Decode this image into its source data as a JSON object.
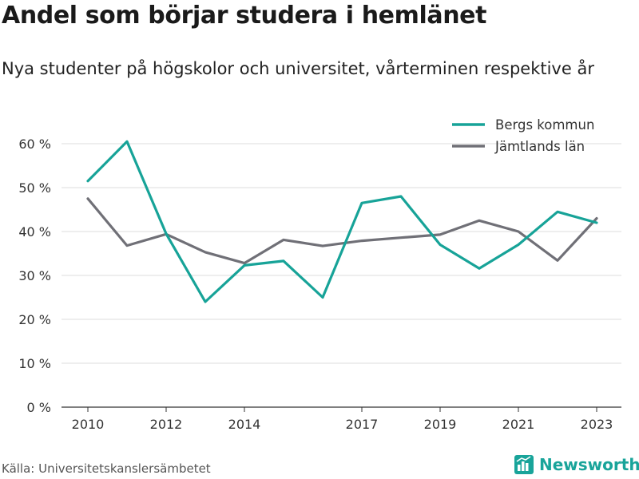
{
  "header": {
    "title": "Andel som börjar studera i hemlänet",
    "subtitle": "Nya studenter på högskolor och universitet, vårterminen respektive år"
  },
  "footer": {
    "source": "Källa: Universitetskanslersämbetet",
    "brand": "Newsworthy",
    "brand_icon": "newsworthy-logo-icon",
    "brand_color": "#19a49a"
  },
  "chart_data": {
    "type": "line",
    "title": "Andel som börjar studera i hemlänet",
    "subtitle": "Nya studenter på högskolor och universitet, vårterminen respektive år",
    "xlabel": "",
    "ylabel": "",
    "x": [
      2010,
      2011,
      2012,
      2013,
      2014,
      2015,
      2016,
      2017,
      2018,
      2019,
      2020,
      2021,
      2022,
      2023
    ],
    "x_ticks": [
      2010,
      2012,
      2014,
      2017,
      2019,
      2021,
      2023
    ],
    "xlim": [
      2010,
      2023
    ],
    "ylim": [
      0,
      60
    ],
    "y_ticks": [
      0,
      10,
      20,
      30,
      40,
      50,
      60
    ],
    "y_tick_labels": [
      "0 %",
      "10 %",
      "20 %",
      "30 %",
      "40 %",
      "50 %",
      "60 %"
    ],
    "grid": true,
    "legend_position": "top-right",
    "series": [
      {
        "name": "Bergs kommun",
        "color": "#17a398",
        "values": [
          51.5,
          60.5,
          39.5,
          24,
          32.3,
          33.3,
          25,
          46.5,
          48,
          37,
          31.6,
          37,
          44.5,
          42
        ]
      },
      {
        "name": "Jämtlands län",
        "color": "#707077",
        "values": [
          47.5,
          36.8,
          39.4,
          35.3,
          32.8,
          38.1,
          36.7,
          37.9,
          38.6,
          39.3,
          42.5,
          40,
          33.4,
          43
        ]
      }
    ]
  }
}
